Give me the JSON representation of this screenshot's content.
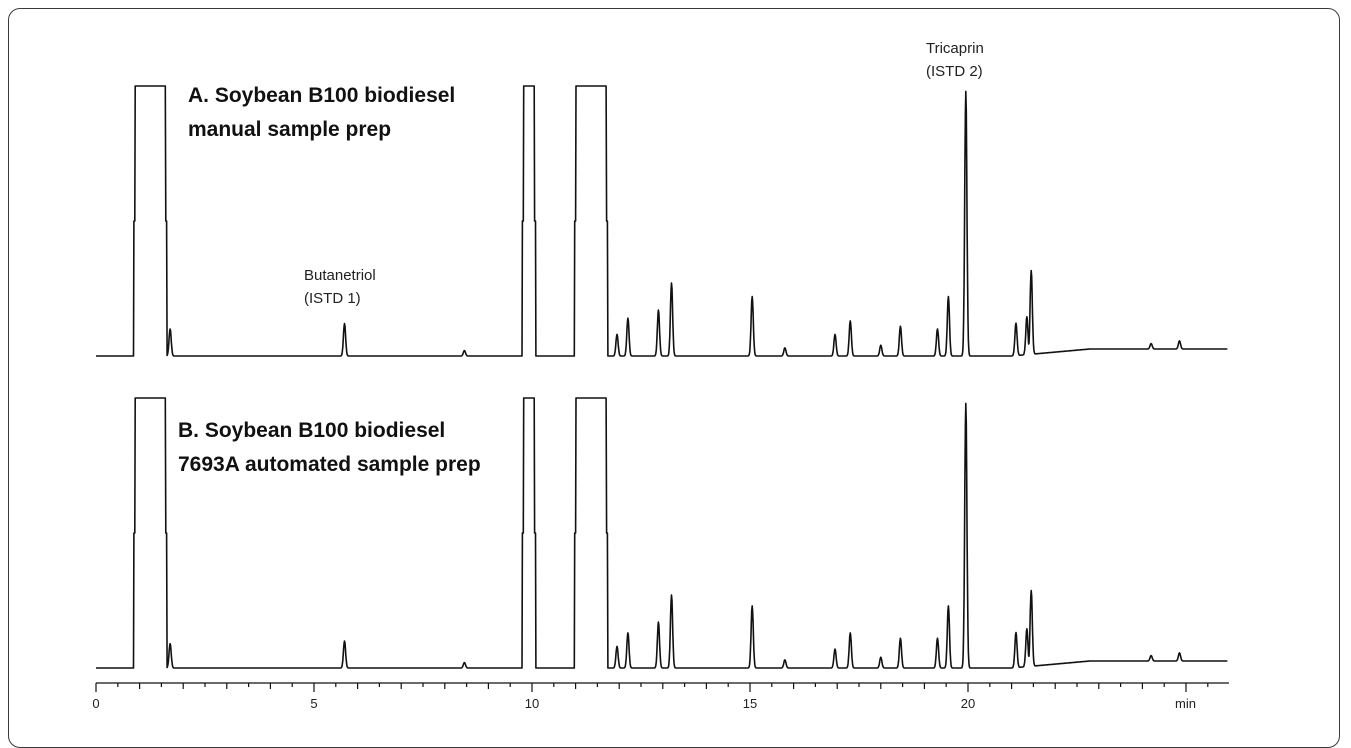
{
  "chart_data": [
    {
      "type": "line",
      "title": "A. Soybean B100 biodiesel\nmanual sample prep",
      "title_lines": [
        "A. Soybean B100 biodiesel",
        "manual sample prep"
      ],
      "xlabel": "min",
      "xlim": [
        0,
        26
      ],
      "annotations": [
        {
          "text_lines": [
            "Butanetriol",
            "(ISTD 1)"
          ],
          "x": 5.7
        },
        {
          "text_lines": [
            "Tricaprin",
            "(ISTD 2)"
          ],
          "x": 19.95
        }
      ],
      "peaks": [
        {
          "x": 0.9,
          "y": 100,
          "w": 0.7,
          "flat": true
        },
        {
          "x": 1.7,
          "y": 10
        },
        {
          "x": 5.7,
          "y": 12
        },
        {
          "x": 8.45,
          "y": 2
        },
        {
          "x": 9.8,
          "y": 100,
          "w": 0.25,
          "flat": true
        },
        {
          "x": 11.0,
          "y": 100,
          "w": 0.7,
          "flat": true
        },
        {
          "x": 11.95,
          "y": 8
        },
        {
          "x": 12.2,
          "y": 14
        },
        {
          "x": 12.9,
          "y": 17
        },
        {
          "x": 13.2,
          "y": 27
        },
        {
          "x": 15.05,
          "y": 22
        },
        {
          "x": 15.8,
          "y": 3
        },
        {
          "x": 16.95,
          "y": 8
        },
        {
          "x": 17.3,
          "y": 13
        },
        {
          "x": 18.0,
          "y": 4
        },
        {
          "x": 18.45,
          "y": 11
        },
        {
          "x": 19.3,
          "y": 10
        },
        {
          "x": 19.55,
          "y": 22
        },
        {
          "x": 19.95,
          "y": 98
        },
        {
          "x": 21.1,
          "y": 12
        },
        {
          "x": 21.35,
          "y": 14
        },
        {
          "x": 21.45,
          "y": 31
        },
        {
          "x": 24.2,
          "y": 2
        },
        {
          "x": 24.85,
          "y": 3
        }
      ]
    },
    {
      "type": "line",
      "title": "B. Soybean B100 biodiesel\n7693A automated sample prep",
      "title_lines": [
        "B. Soybean B100 biodiesel",
        "7693A automated sample prep"
      ],
      "xlabel": "min",
      "xlim": [
        0,
        26
      ],
      "peaks": [
        {
          "x": 0.9,
          "y": 100,
          "w": 0.7,
          "flat": true
        },
        {
          "x": 1.7,
          "y": 9
        },
        {
          "x": 5.7,
          "y": 10
        },
        {
          "x": 8.45,
          "y": 2
        },
        {
          "x": 9.8,
          "y": 100,
          "w": 0.25,
          "flat": true
        },
        {
          "x": 11.0,
          "y": 100,
          "w": 0.7,
          "flat": true
        },
        {
          "x": 11.95,
          "y": 8
        },
        {
          "x": 12.2,
          "y": 13
        },
        {
          "x": 12.9,
          "y": 17
        },
        {
          "x": 13.2,
          "y": 27
        },
        {
          "x": 15.05,
          "y": 23
        },
        {
          "x": 15.8,
          "y": 3
        },
        {
          "x": 16.95,
          "y": 7
        },
        {
          "x": 17.3,
          "y": 13
        },
        {
          "x": 18.0,
          "y": 4
        },
        {
          "x": 18.45,
          "y": 11
        },
        {
          "x": 19.3,
          "y": 11
        },
        {
          "x": 19.55,
          "y": 23
        },
        {
          "x": 19.95,
          "y": 98
        },
        {
          "x": 21.1,
          "y": 13
        },
        {
          "x": 21.35,
          "y": 14
        },
        {
          "x": 21.45,
          "y": 28
        },
        {
          "x": 24.2,
          "y": 2
        },
        {
          "x": 24.85,
          "y": 3
        }
      ]
    }
  ],
  "x_axis": {
    "ticks": [
      0,
      5,
      10,
      15,
      20
    ],
    "tick_labels": [
      "0",
      "5",
      "10",
      "15",
      "20"
    ],
    "unit_label": "min"
  }
}
